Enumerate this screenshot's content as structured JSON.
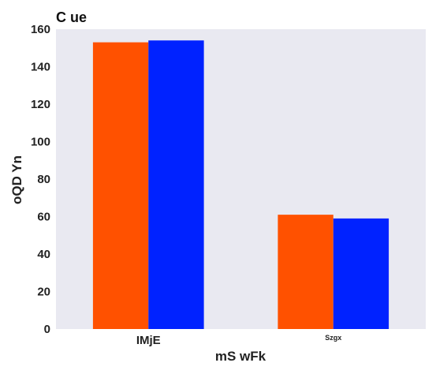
{
  "chart_data": {
    "type": "bar",
    "title": "C ue",
    "xlabel": "mS wFk",
    "ylabel": "oQD Yn",
    "categories": [
      "IMjE",
      "Szgx"
    ],
    "ylim": [
      0,
      160
    ],
    "yticks": [
      0,
      20,
      40,
      60,
      80,
      100,
      120,
      140,
      160
    ],
    "grid": false,
    "legend": "none",
    "series": [
      {
        "values": [
          153,
          61
        ],
        "color": "#ff5100"
      },
      {
        "values": [
          154,
          59
        ],
        "color": "#0022ff"
      }
    ],
    "plot_background": "#e9e9f1"
  }
}
